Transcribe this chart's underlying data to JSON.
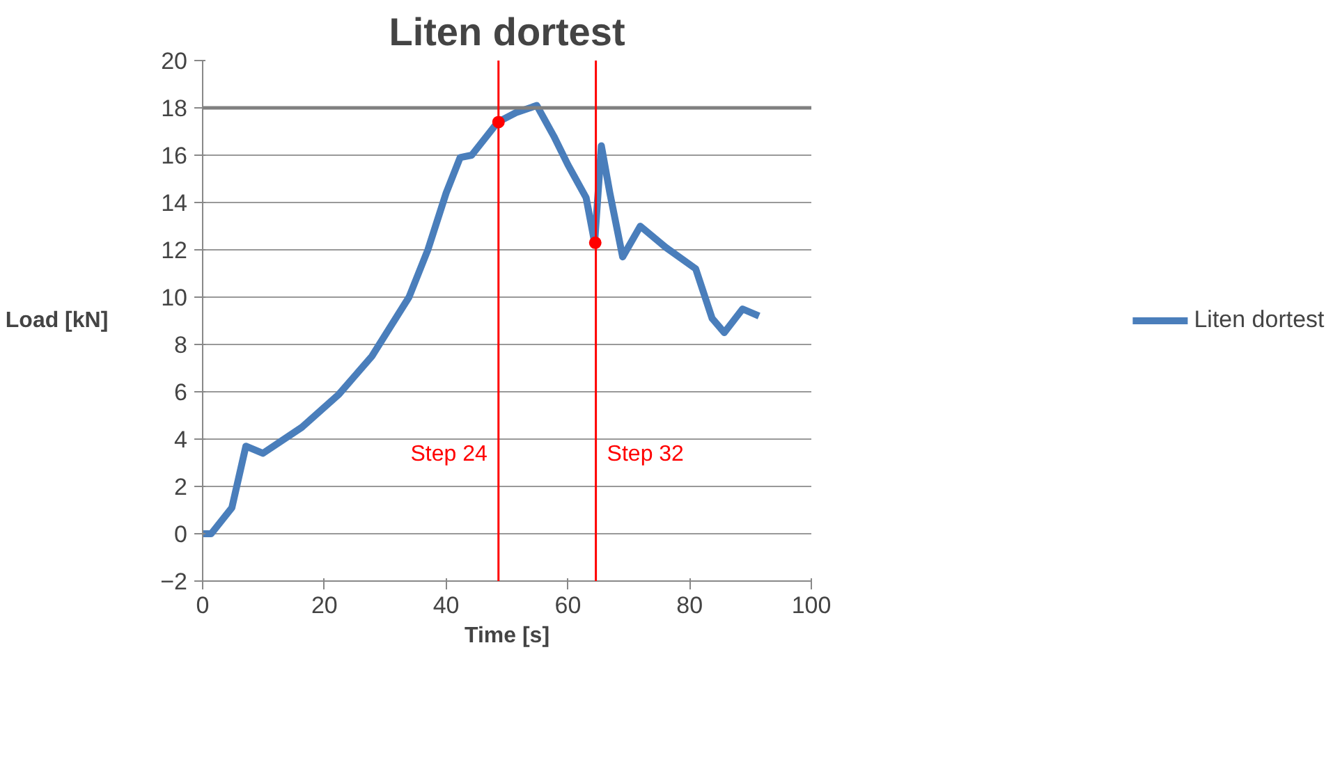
{
  "chart_data": {
    "type": "line",
    "title": "Liten dortest",
    "xlabel": "Time [s]",
    "ylabel": "Load  [kN]",
    "xlim": [
      0,
      100
    ],
    "xticks": [
      0,
      20,
      40,
      60,
      80,
      100
    ],
    "ylim": [
      -2,
      20
    ],
    "yticks": [
      -2,
      0,
      2,
      4,
      6,
      8,
      10,
      12,
      14,
      16,
      18,
      20
    ],
    "grid": "y",
    "legend": "right",
    "marker": "none",
    "line_style": "solid",
    "series": [
      {
        "name": "Liten dortest",
        "color": "#4a7ebb",
        "x": [
          0,
          1.4,
          4.8,
          7.1,
          9.9,
          16.3,
          22.4,
          27.8,
          33.9,
          37,
          40,
          42.3,
          44.2,
          48.5,
          51.5,
          54.9,
          57.7,
          60,
          63,
          64.4,
          65.5,
          66.9,
          69,
          71.9,
          76.1,
          81,
          83.7,
          85.7,
          88.7,
          91.4
        ],
        "values": [
          0,
          0,
          1.1,
          3.7,
          3.4,
          4.5,
          5.9,
          7.5,
          10.0,
          12.0,
          14.4,
          15.9,
          16.0,
          17.4,
          17.8,
          18.1,
          16.8,
          15.6,
          14.2,
          12.3,
          16.4,
          14.4,
          11.7,
          13.0,
          12.1,
          11.2,
          9.1,
          8.5,
          9.5,
          9.2
        ]
      },
      {
        "type": "scatter",
        "marker": "circle",
        "color": "#ff0000",
        "x": [
          48.6,
          64.5
        ],
        "values": [
          17.4,
          12.3
        ]
      }
    ],
    "ref_lines": [
      {
        "axis": "y",
        "value": 18,
        "color": "#808080"
      },
      {
        "axis": "x",
        "value": 48.6,
        "label": "Step 24",
        "color": "#ff0000"
      },
      {
        "axis": "x",
        "value": 64.6,
        "label": "Step 32",
        "color": "#ff0000"
      }
    ]
  }
}
